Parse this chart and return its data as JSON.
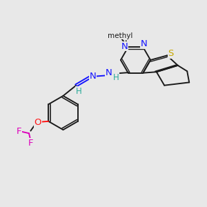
{
  "bg_color": "#e8e8e8",
  "bond_color": "#1a1a1a",
  "N_color": "#1414ff",
  "S_color": "#c8a800",
  "O_color": "#ff1414",
  "F_color": "#dd00bb",
  "H_color": "#2aaa99",
  "figsize": [
    3.0,
    3.0
  ],
  "dpi": 100,
  "xlim": [
    0,
    10
  ],
  "ylim": [
    0,
    10
  ]
}
